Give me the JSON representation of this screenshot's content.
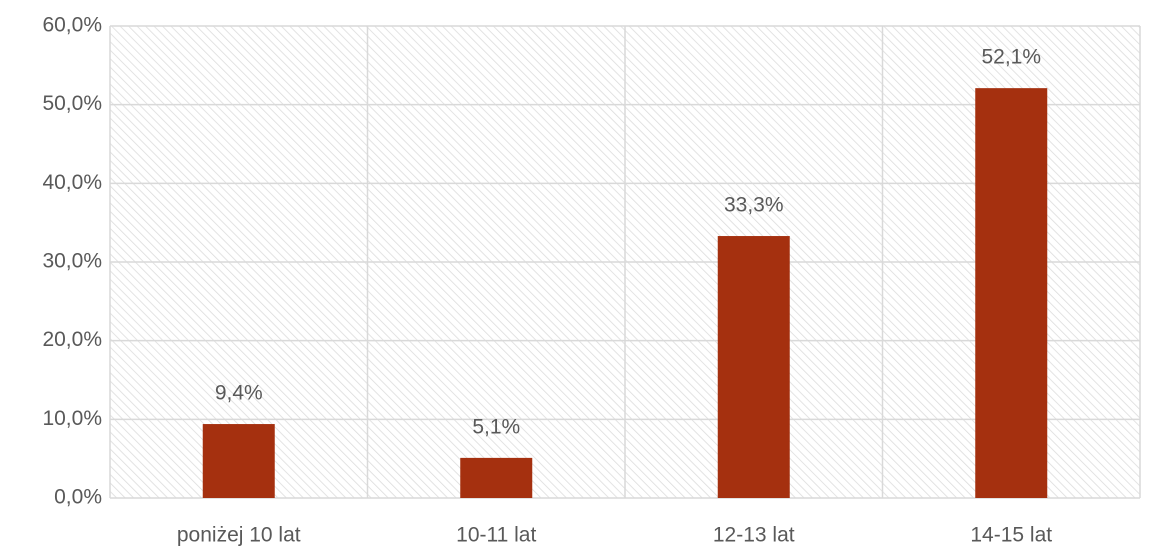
{
  "chart_data": {
    "type": "bar",
    "categories": [
      "poniżej 10 lat",
      "10-11 lat",
      "12-13 lat",
      "14-15 lat"
    ],
    "values": [
      9.4,
      5.1,
      33.3,
      52.1
    ],
    "value_labels": [
      "9,4%",
      "5,1%",
      "33,3%",
      "52,1%"
    ],
    "color": "#a5300f",
    "ylim": [
      0,
      60
    ],
    "yticks": [
      {
        "value": 0,
        "label": "0,0%"
      },
      {
        "value": 10,
        "label": "10,0%"
      },
      {
        "value": 20,
        "label": "20,0%"
      },
      {
        "value": 30,
        "label": "30,0%"
      },
      {
        "value": 40,
        "label": "40,0%"
      },
      {
        "value": 50,
        "label": "50,0%"
      },
      {
        "value": 60,
        "label": "60,0%"
      }
    ],
    "grid": true
  }
}
